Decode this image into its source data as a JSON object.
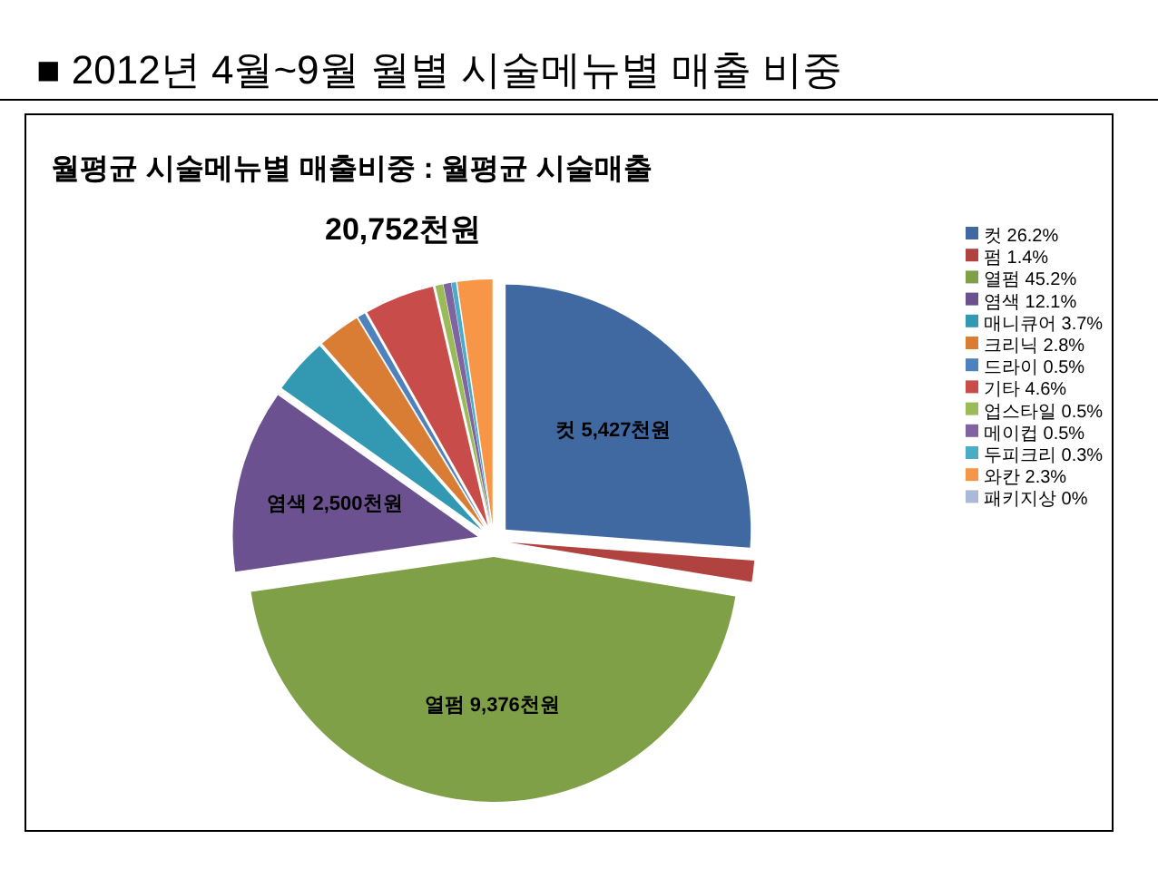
{
  "chart_data": {
    "type": "pie",
    "title": "■ 2012년 4월~9월 월별 시술메뉴별 매출 비중",
    "subtitle": "월평균 시술메뉴별 매출비중 : 월평균 시술매출",
    "annotations": [
      "20,752천원"
    ],
    "categories": [
      "컷 26.2%",
      "펌 1.4%",
      "열펌 45.2%",
      "염색 12.1%",
      "매니큐어 3.7%",
      "크리닉 2.8%",
      "드라이 0.5%",
      "기타 4.6%",
      "업스타일 0.5%",
      "메이컵 0.5%",
      "두피크리 0.3%",
      "와칸 2.3%",
      "패키지상 0%"
    ],
    "values": [
      26.2,
      1.4,
      45.2,
      12.1,
      3.7,
      2.8,
      0.5,
      4.6,
      0.5,
      0.5,
      0.3,
      2.3,
      0
    ],
    "colors": [
      "#3f69a0",
      "#b0423f",
      "#80a048",
      "#6c5190",
      "#3399b3",
      "#d97d35",
      "#4f81bd",
      "#c84c4a",
      "#9bbb59",
      "#8064a2",
      "#4bacc6",
      "#f79646",
      "#aab9d7"
    ],
    "value_labels": [
      "컷 5,427천원",
      null,
      "열펌 9,376천원",
      "염색 2,500천원",
      null,
      null,
      null,
      null,
      null,
      null,
      null,
      null,
      null
    ],
    "legend": "right"
  }
}
